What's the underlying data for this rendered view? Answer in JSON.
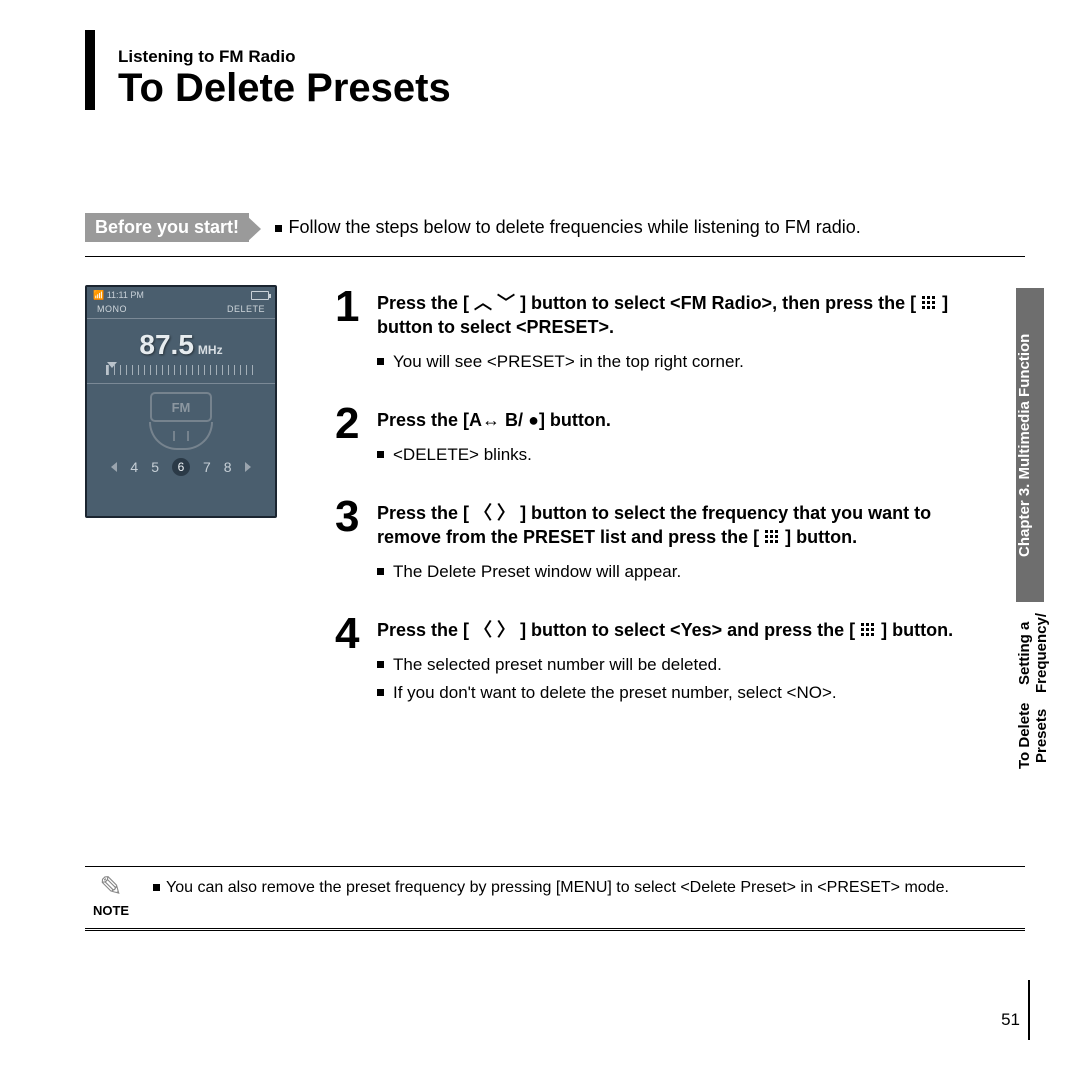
{
  "header": {
    "section": "Listening to FM Radio",
    "title": "To Delete Presets"
  },
  "before_you_start": {
    "badge": "Before you start!",
    "text": "Follow the steps below to delete frequencies while listening to FM radio."
  },
  "device": {
    "time": "11:11 PM",
    "mode_left": "MONO",
    "mode_right": "DELETE",
    "freq": "87.5",
    "unit": "MHz",
    "fm_label": "FM",
    "presets": [
      "4",
      "5",
      "6",
      "7",
      "8"
    ],
    "selected_index": 2
  },
  "steps": [
    {
      "num": "1",
      "heading_parts": [
        "Press the [ ",
        "UPDN",
        " ] button to select <FM Radio>, then press the [ ",
        "GRID",
        " ] button to select <PRESET>."
      ],
      "bullets": [
        "You will see <PRESET> in the top right corner."
      ]
    },
    {
      "num": "2",
      "heading_parts": [
        "Press the [A",
        "LR",
        " B/ ",
        "DOT",
        "] button."
      ],
      "bullets": [
        "<DELETE> blinks."
      ]
    },
    {
      "num": "3",
      "heading_parts": [
        "Press the  [ ",
        "ANG",
        " ] button to select the frequency that you want to remove from the PRESET list and press the [ ",
        "GRID",
        " ] button."
      ],
      "bullets": [
        "The Delete Preset window will appear."
      ]
    },
    {
      "num": "4",
      "heading_parts": [
        "Press the  [ ",
        "ANG",
        " ] button to select <Yes> and press the [ ",
        "GRID",
        " ] button."
      ],
      "bullets": [
        "The selected preset number will be deleted.",
        "If you don't want to delete the preset number, select <NO>."
      ]
    }
  ],
  "note": {
    "label": "NOTE",
    "text": "You can also remove the preset frequency by pressing [MENU] to select <Delete Preset> in <PRESET> mode."
  },
  "side_tab": {
    "dark": "Chapter 3. Multimedia Function",
    "light_line1": "Setting a Frequency/",
    "light_line2": "To Delete Presets"
  },
  "page_number": "51",
  "symbols": {
    "updn": "︿ ﹀",
    "angles": "〈  〉",
    "leftright": "↔",
    "dot": "●"
  }
}
